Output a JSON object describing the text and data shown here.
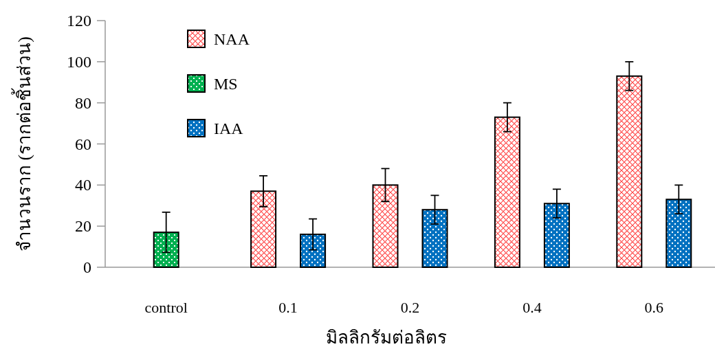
{
  "chart_data": {
    "type": "bar",
    "ylabel": "จำนวนราก (รากต่อชิ้นส่วน)",
    "xlabel": "มิลลิกรัมต่อลิตร",
    "categories": [
      "control",
      "0.1",
      "0.2",
      "0.4",
      "0.6"
    ],
    "series": [
      {
        "name": "NAA",
        "color": "#ff0000",
        "values": [
          null,
          37,
          40,
          73,
          93
        ],
        "errors": [
          null,
          7.5,
          8,
          7,
          7
        ]
      },
      {
        "name": "MS",
        "color": "#00b050",
        "values": [
          17,
          null,
          null,
          null,
          null
        ],
        "errors": [
          9.8,
          null,
          null,
          null,
          null
        ]
      },
      {
        "name": "IAA",
        "color": "#0070c0",
        "values": [
          null,
          16,
          28,
          31,
          33
        ],
        "errors": [
          null,
          7.5,
          7,
          7,
          7
        ]
      }
    ],
    "ylim": [
      0,
      120
    ],
    "yticks": [
      0,
      20,
      40,
      60,
      80,
      100,
      120
    ],
    "grid": false,
    "legend": "top left"
  }
}
